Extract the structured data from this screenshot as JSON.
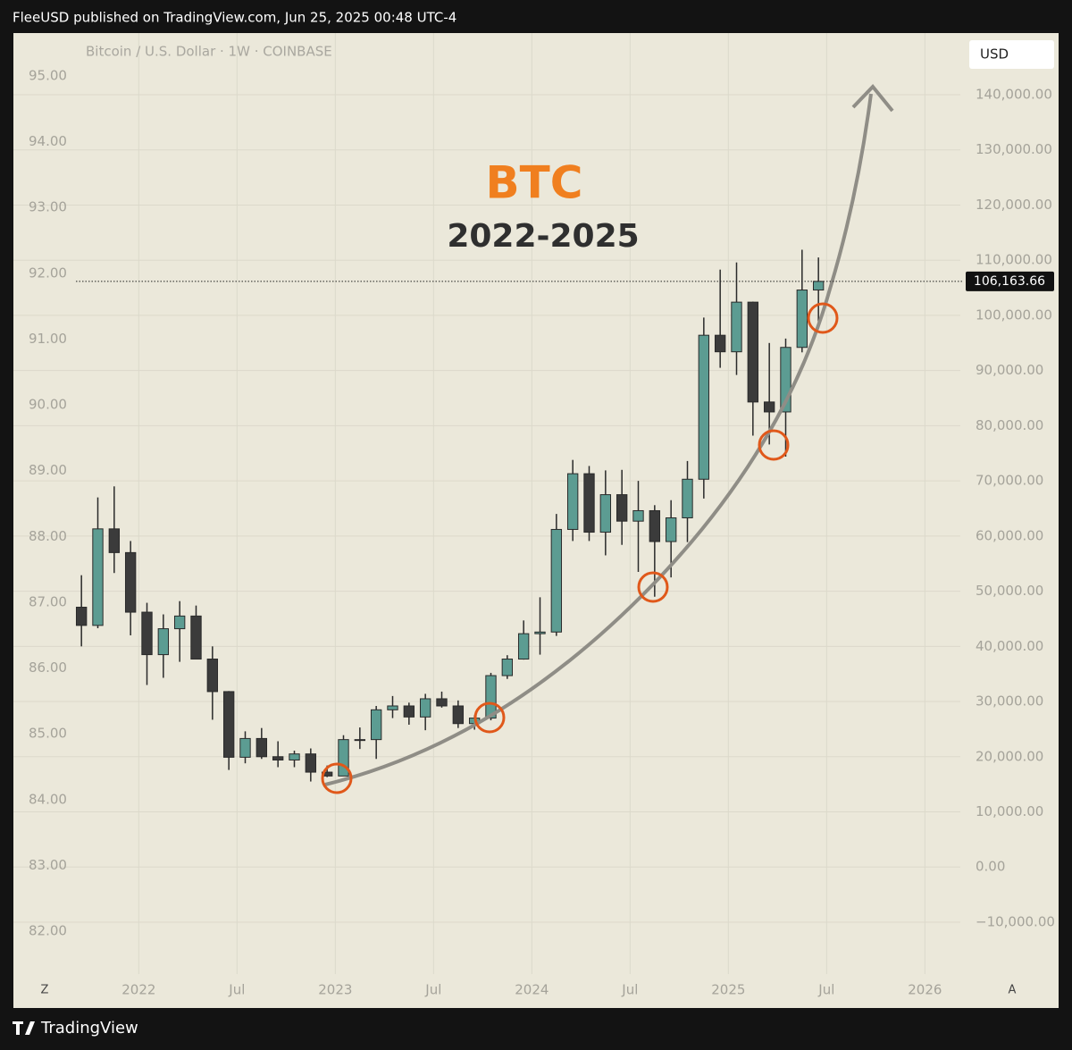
{
  "header": "FleeUSD published on TradingView.com, Jun 25, 2025 00:48 UTC-4",
  "footer": "TradingView",
  "chart_data": {
    "type": "candlestick",
    "symbol": "Bitcoin / U.S. Dollar · 1W · COINBASE",
    "currency": "USD",
    "annotations": [
      "BTC",
      "2022-2025"
    ],
    "scale_buttons": [
      "Z",
      "A"
    ],
    "x": [
      "2021-09",
      "2021-10",
      "2021-11",
      "2021-12",
      "2022-01",
      "2022-02",
      "2022-03",
      "2022-04",
      "2022-05",
      "2022-06",
      "2022-07",
      "2022-08",
      "2022-09",
      "2022-10",
      "2022-11",
      "2022-12",
      "2023-01",
      "2023-02",
      "2023-03",
      "2023-04",
      "2023-05",
      "2023-06",
      "2023-07",
      "2023-08",
      "2023-09",
      "2023-10",
      "2023-11",
      "2023-12",
      "2024-01",
      "2024-02",
      "2024-03",
      "2024-04",
      "2024-05",
      "2024-06",
      "2024-07",
      "2024-08",
      "2024-09",
      "2024-10",
      "2024-11",
      "2024-12",
      "2025-01",
      "2025-02",
      "2025-03",
      "2025-04",
      "2025-05",
      "2025-06"
    ],
    "open": [
      47100,
      43800,
      61300,
      57000,
      46200,
      38500,
      43200,
      45500,
      37700,
      31800,
      19900,
      23300,
      20000,
      19400,
      20500,
      17200,
      16500,
      23100,
      23100,
      28500,
      29200,
      27200,
      30500,
      29200,
      26000,
      27000,
      34700,
      37700,
      42300,
      42600,
      61200,
      71300,
      60700,
      67500,
      62700,
      64600,
      59000,
      63300,
      70300,
      96400,
      93400,
      102400,
      84300,
      82500,
      94200,
      104600
    ],
    "high": [
      52900,
      67000,
      69000,
      59100,
      47900,
      45800,
      48200,
      47400,
      40000,
      31900,
      24600,
      25200,
      22800,
      21100,
      21500,
      18400,
      23900,
      25300,
      29200,
      31000,
      29800,
      31400,
      31800,
      30200,
      27500,
      35200,
      38400,
      44700,
      48900,
      64000,
      73800,
      72700,
      71900,
      72000,
      70000,
      65600,
      66500,
      73600,
      99600,
      108300,
      109600,
      102500,
      95000,
      95800,
      111900,
      110500
    ],
    "low": [
      40000,
      43300,
      53300,
      42000,
      33000,
      34300,
      37200,
      37700,
      26700,
      17600,
      18800,
      19600,
      18100,
      18100,
      15500,
      16300,
      16500,
      21400,
      19600,
      27000,
      25800,
      24800,
      28900,
      25200,
      24900,
      26600,
      34100,
      37600,
      38500,
      41900,
      59100,
      59100,
      56500,
      58400,
      53500,
      49000,
      52500,
      58900,
      66800,
      90500,
      89200,
      78200,
      76600,
      74400,
      93300,
      98200
    ],
    "close": [
      43800,
      61300,
      57000,
      46200,
      38500,
      43200,
      45500,
      37700,
      31800,
      19900,
      23300,
      20000,
      19400,
      20500,
      17200,
      16500,
      23100,
      23100,
      28500,
      29200,
      27200,
      30500,
      29200,
      26000,
      27000,
      34700,
      37700,
      42300,
      42600,
      61200,
      71300,
      60700,
      67500,
      62700,
      64600,
      59000,
      63300,
      70300,
      96400,
      93400,
      102400,
      84300,
      82500,
      94200,
      104600,
      106163.66
    ],
    "up_color": "#5c9c92",
    "down_color": "#3b3b3b",
    "last_price": {
      "value": 106163.66,
      "label": "106,163.66"
    },
    "xlim": [
      "2021-09",
      "2026-03"
    ],
    "xticks": [
      {
        "value": "2022-01",
        "label": "2022"
      },
      {
        "value": "2022-07",
        "label": "Jul"
      },
      {
        "value": "2023-01",
        "label": "2023"
      },
      {
        "value": "2023-07",
        "label": "Jul"
      },
      {
        "value": "2024-01",
        "label": "2024"
      },
      {
        "value": "2024-07",
        "label": "Jul"
      },
      {
        "value": "2025-01",
        "label": "2025"
      },
      {
        "value": "2025-07",
        "label": "Jul"
      },
      {
        "value": "2026-01",
        "label": "2026"
      }
    ],
    "ylim": [
      -19400,
      151180
    ],
    "yticks": [
      {
        "value": 140000,
        "label": "140,000.00"
      },
      {
        "value": 130000,
        "label": "130,000.00"
      },
      {
        "value": 120000,
        "label": "120,000.00"
      },
      {
        "value": 110000,
        "label": "110,000.00"
      },
      {
        "value": 100000,
        "label": "100,000.00"
      },
      {
        "value": 90000,
        "label": "90,000.00"
      },
      {
        "value": 80000,
        "label": "80,000.00"
      },
      {
        "value": 70000,
        "label": "70,000.00"
      },
      {
        "value": 60000,
        "label": "60,000.00"
      },
      {
        "value": 50000,
        "label": "50,000.00"
      },
      {
        "value": 40000,
        "label": "40,000.00"
      },
      {
        "value": 30000,
        "label": "30,000.00"
      },
      {
        "value": 20000,
        "label": "20,000.00"
      },
      {
        "value": 10000,
        "label": "10,000.00"
      },
      {
        "value": 0,
        "label": "0.00"
      },
      {
        "value": -10000,
        "label": "−10,000.00"
      }
    ],
    "y2lim": [
      81.35,
      95.65
    ],
    "y2ticks": [
      {
        "value": 95,
        "label": "95.00"
      },
      {
        "value": 94,
        "label": "94.00"
      },
      {
        "value": 93,
        "label": "93.00"
      },
      {
        "value": 92,
        "label": "92.00"
      },
      {
        "value": 91,
        "label": "91.00"
      },
      {
        "value": 90,
        "label": "90.00"
      },
      {
        "value": 89,
        "label": "89.00"
      },
      {
        "value": 88,
        "label": "88.00"
      },
      {
        "value": 87,
        "label": "87.00"
      },
      {
        "value": 86,
        "label": "86.00"
      },
      {
        "value": 85,
        "label": "85.00"
      },
      {
        "value": 84,
        "label": "84.00"
      },
      {
        "value": 83,
        "label": "83.00"
      },
      {
        "value": 82,
        "label": "82.00"
      }
    ],
    "grid": true
  }
}
